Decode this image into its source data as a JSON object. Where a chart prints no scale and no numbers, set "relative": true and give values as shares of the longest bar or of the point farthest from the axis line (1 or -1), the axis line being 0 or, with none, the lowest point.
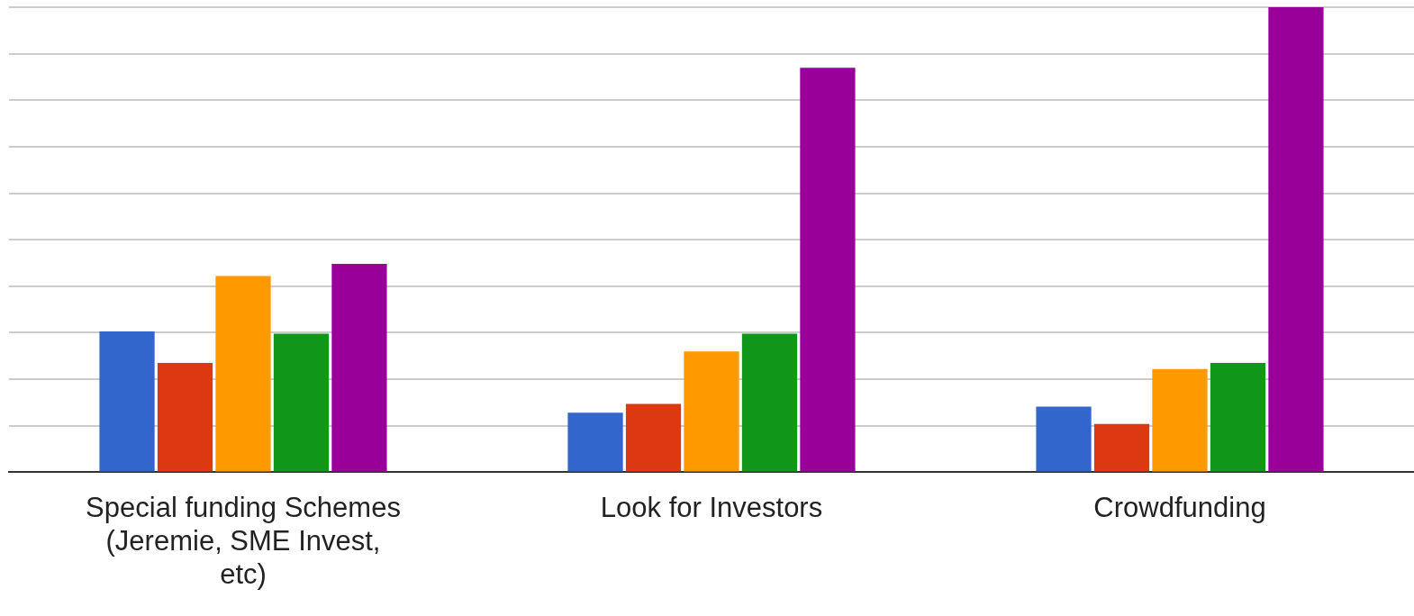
{
  "chart_data": {
    "type": "bar",
    "relative": true,
    "grid": "y",
    "legend": false,
    "categories": [
      "Special funding Schemes (Jeremie, SME Invest, etc)",
      "Look for Investors",
      "Crowdfunding"
    ],
    "series": [
      {
        "color": "#3366cc",
        "values": [
          0.303,
          0.128,
          0.141
        ]
      },
      {
        "color": "#dc3912",
        "values": [
          0.235,
          0.147,
          0.104
        ]
      },
      {
        "color": "#ff9900",
        "values": [
          0.422,
          0.26,
          0.222
        ]
      },
      {
        "color": "#109618",
        "values": [
          0.298,
          0.298,
          0.235
        ]
      },
      {
        "color": "#990099",
        "values": [
          0.448,
          0.87,
          1
        ]
      }
    ]
  }
}
